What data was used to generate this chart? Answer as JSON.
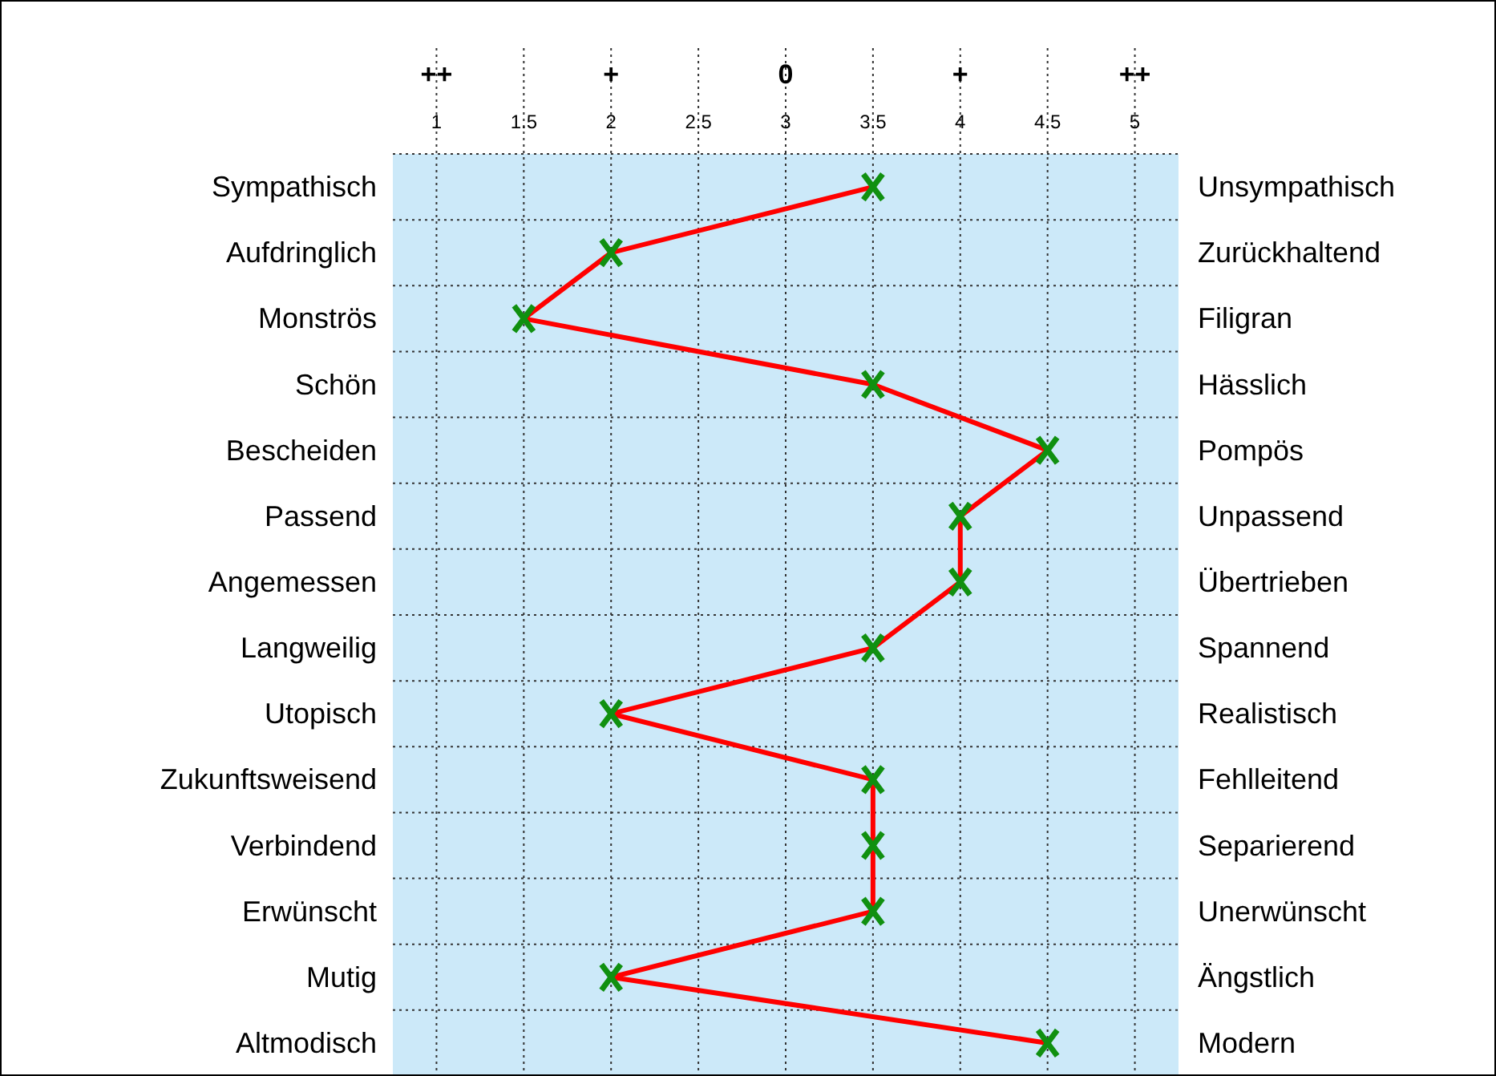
{
  "chart_data": {
    "type": "line",
    "orientation": "horizontal",
    "categories": [
      "Sympathisch",
      "Aufdringlich",
      "Monströs",
      "Schön",
      "Bescheiden",
      "Passend",
      "Angemessen",
      "Langweilig",
      "Utopisch",
      "Zukunftsweisend",
      "Verbindend",
      "Erwünscht",
      "Mutig",
      "Altmodisch"
    ],
    "y2_categories": [
      "Unsympathisch",
      "Zurückhaltend",
      "Filigran",
      "Hässlich",
      "Pompös",
      "Unpassend",
      "Übertrieben",
      "Spannend",
      "Realistisch",
      "Fehlleitend",
      "Separierend",
      "Unerwünscht",
      "Ängstlich",
      "Modern"
    ],
    "series": [
      {
        "color": "#ff0000",
        "values": [
          3.5,
          2,
          1.5,
          3.5,
          4.5,
          4,
          4,
          3.5,
          2,
          3.5,
          3.5,
          3.5,
          2,
          4.5
        ]
      },
      {
        "type": "scatter",
        "marker": "cross",
        "color": "#109010",
        "values": [
          3.5,
          2,
          1.5,
          3.5,
          4.5,
          4,
          4,
          3.5,
          2,
          3.5,
          3.5,
          3.5,
          2,
          4.5
        ]
      }
    ],
    "xlim": [
      0.75,
      5.25
    ],
    "xticks": [
      1,
      1.5,
      2,
      2.5,
      3,
      3.5,
      4,
      4.5,
      5
    ],
    "annotations": [
      "++",
      "+",
      "0",
      "+",
      "++"
    ],
    "grid": true
  }
}
